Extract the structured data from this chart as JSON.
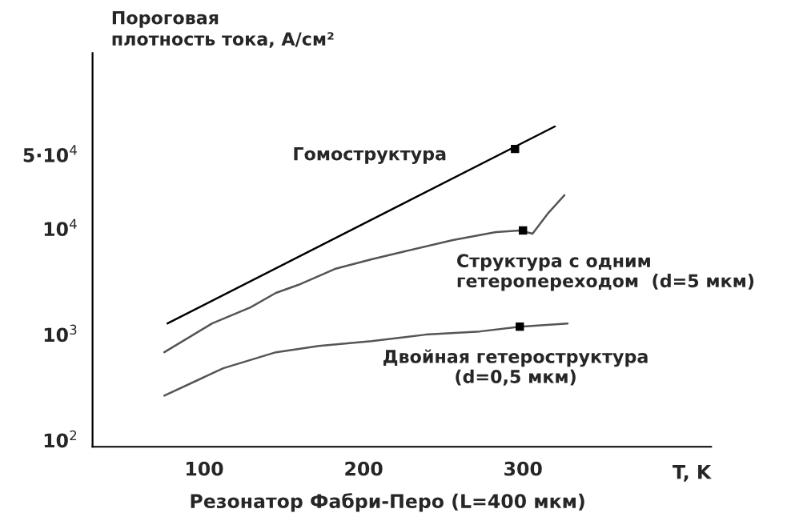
{
  "chart_data": {
    "type": "line",
    "ylabel": "Пороговая\nплотность тока, А/см²",
    "xlabel": "T, K",
    "log": "y",
    "xlim": [
      30,
      418
    ],
    "xticks": [
      100,
      200,
      300
    ],
    "ylim": [
      87,
      460000
    ],
    "yticks": [
      {
        "value": 100,
        "label": "10$^{2}$"
      },
      {
        "value": 1000,
        "label": "10$^{3}$"
      },
      {
        "value": 10000,
        "label": "10$^{4}$"
      },
      {
        "value": 50000,
        "label": "5·10$^{4}$"
      }
    ],
    "grid": false,
    "legend": false,
    "series": [
      {
        "name": "Гомоструктура",
        "color": "#000000",
        "x": [
          77,
          320
        ],
        "values": [
          1276,
          93000
        ]
      },
      {
        "name": "Структура с одним\nгетеропереходом  (d=5 мкм)",
        "color": "#555555",
        "x": [
          75,
          105,
          129,
          145,
          159,
          182,
          205,
          226,
          256,
          283,
          298,
          306,
          316,
          326
        ],
        "values": [
          681,
          1276,
          1811,
          2480,
          2950,
          4180,
          5150,
          6140,
          7830,
          9330,
          9660,
          9010,
          14200,
          20800
        ]
      },
      {
        "name": "Двойная гетероструктура\n(d=0,5 мкм)",
        "color": "#555555",
        "x": [
          75,
          112,
          145,
          172,
          205,
          239,
          273,
          298,
          328
        ],
        "values": [
          265,
          481,
          681,
          783,
          869,
          1000,
          1072,
          1190,
          1276
        ]
      },
      {
        "type": "scatter",
        "color": "#000000",
        "marker": "square",
        "x": [
          295,
          300,
          298
        ],
        "values": [
          57000,
          9660,
          1190
        ]
      }
    ],
    "annotations": [
      "Резонатор Фабри-Перо (L=400 мкм)"
    ]
  }
}
